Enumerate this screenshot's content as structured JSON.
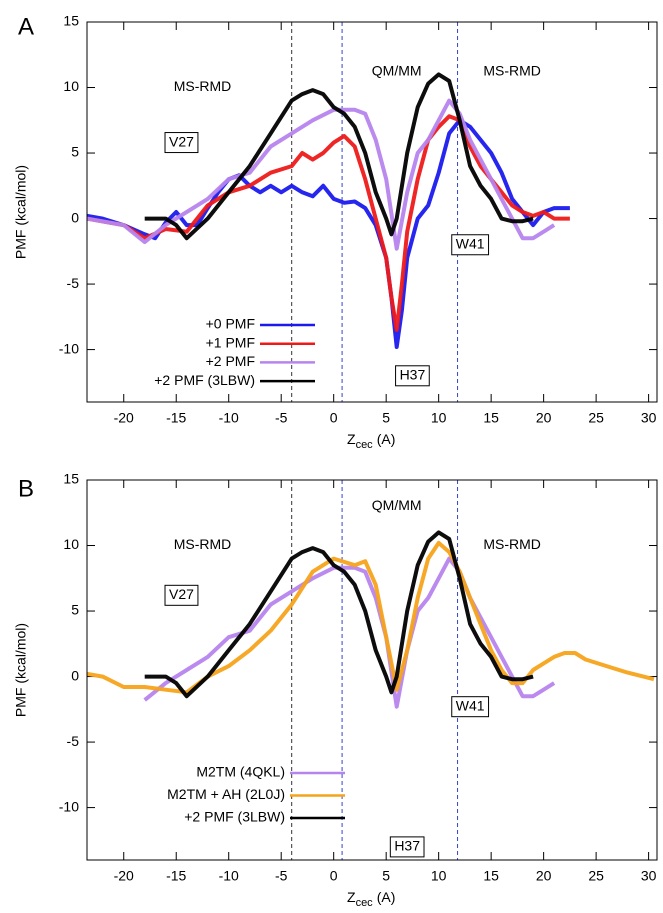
{
  "chart_data": [
    {
      "type": "line",
      "panel_label": "A",
      "ylabel": "PMF (kcal/mol)",
      "xlabel": "Z",
      "xlabel_sub": "cec",
      "xlabel_unit": "(A)",
      "xlim": [
        -23.5,
        30.8
      ],
      "ylim": [
        -14,
        15
      ],
      "xticks": [
        -20,
        -15,
        -10,
        -5,
        0,
        5,
        10,
        15,
        20,
        25,
        30
      ],
      "yticks": [
        -10,
        -5,
        0,
        5,
        10,
        15
      ],
      "vlines": [
        {
          "value": -4,
          "color": "#333333"
        },
        {
          "value": 0.8,
          "color": "#3344cc"
        },
        {
          "value": 11.8,
          "color": "#3344cc"
        }
      ],
      "annotations": [
        {
          "text": "MS-RMD"
        },
        {
          "text": "QM/MM"
        },
        {
          "text": "MS-RMD"
        },
        {
          "text": "V27",
          "boxed": true
        },
        {
          "text": "W41",
          "boxed": true
        },
        {
          "text": "H37",
          "boxed": true
        }
      ],
      "legend": "lower left",
      "series": [
        {
          "name": "+0 PMF",
          "color": "#1a1aee",
          "x": [
            -23.5,
            -22,
            -20,
            -18,
            -17,
            -16,
            -15,
            -14,
            -13,
            -12,
            -11,
            -10,
            -9,
            -8,
            -7,
            -6,
            -5,
            -4,
            -3,
            -2,
            -1,
            0,
            1,
            2,
            3,
            4,
            5,
            5.5,
            6,
            6.5,
            7,
            8,
            9,
            10,
            11,
            12,
            13,
            14,
            15,
            16,
            17,
            18,
            19,
            20,
            21,
            22.5
          ],
          "values": [
            0.2,
            0,
            -0.5,
            -1.2,
            -1.5,
            -0.3,
            0.5,
            -0.5,
            -0.5,
            0.8,
            2,
            3,
            3.3,
            2.5,
            2,
            2.5,
            2,
            2.5,
            2,
            1.7,
            2.5,
            1.5,
            1.2,
            1.3,
            0.8,
            -0.5,
            -3,
            -6,
            -9.8,
            -7,
            -3,
            0,
            1,
            3.5,
            6.5,
            7.5,
            7,
            6,
            5,
            3.5,
            1.5,
            0.5,
            -0.5,
            0.5,
            0.8,
            0.8
          ]
        },
        {
          "name": "+1 PMF",
          "color": "#ee1a1a",
          "x": [
            -23.5,
            -20,
            -18,
            -16,
            -14,
            -12,
            -10,
            -8,
            -6,
            -4,
            -3,
            -2,
            -1,
            0,
            1,
            2,
            3,
            4,
            5,
            5.5,
            6,
            6.5,
            7,
            8,
            9,
            10,
            11,
            12,
            13,
            14,
            15,
            16,
            17,
            18,
            19,
            20,
            21,
            22.5
          ],
          "values": [
            0,
            -0.5,
            -1.5,
            -0.8,
            -1,
            1,
            2,
            2.5,
            3.5,
            4,
            5,
            4.5,
            5,
            5.8,
            6.3,
            5.5,
            3,
            0,
            -3,
            -6,
            -8.5,
            -5,
            -1,
            3,
            6,
            7,
            7.8,
            7.5,
            5.5,
            4,
            3,
            2,
            1,
            0.5,
            0.2,
            0.5,
            0,
            0
          ]
        },
        {
          "name": "+2 PMF",
          "color": "#b784ee",
          "x": [
            -23.5,
            -20,
            -18,
            -16,
            -14,
            -12,
            -10,
            -8,
            -6,
            -4,
            -2,
            0,
            2,
            3,
            4,
            5,
            6,
            7,
            8,
            9,
            10,
            11,
            12,
            13,
            14,
            15,
            16,
            17,
            18,
            19,
            20,
            21
          ],
          "values": [
            0,
            -0.5,
            -1.8,
            -0.5,
            0.5,
            1.5,
            3,
            3.5,
            5.5,
            6.5,
            7.5,
            8.3,
            8.3,
            8,
            6,
            3,
            -2.3,
            2,
            5,
            6,
            7.5,
            9,
            8,
            6,
            4.5,
            3,
            1.5,
            0,
            -1.5,
            -1.5,
            -1,
            -0.5
          ]
        },
        {
          "name": "+2 PMF (3LBW)",
          "color": "#000000",
          "x": [
            -18,
            -16,
            -15,
            -14,
            -12,
            -10,
            -8,
            -6,
            -4,
            -3,
            -2,
            -1,
            0,
            1,
            2,
            3,
            4,
            5,
            5.5,
            6,
            7,
            8,
            9,
            10,
            11,
            12,
            13,
            14,
            15,
            16,
            17,
            18,
            19
          ],
          "values": [
            0,
            0,
            -0.5,
            -1.5,
            0,
            2,
            4,
            6.5,
            9,
            9.5,
            9.8,
            9.5,
            8.5,
            8,
            7,
            5,
            2,
            0,
            -1.2,
            0,
            5,
            8.5,
            10.3,
            11,
            10.5,
            7.5,
            4,
            2.5,
            1.5,
            0,
            -0.2,
            -0.2,
            0
          ]
        }
      ]
    },
    {
      "type": "line",
      "panel_label": "B",
      "ylabel": "PMF (kcal/mol)",
      "xlabel": "Z",
      "xlabel_sub": "cec",
      "xlabel_unit": "(A)",
      "xlim": [
        -23.5,
        30.8
      ],
      "ylim": [
        -14,
        15
      ],
      "xticks": [
        -20,
        -15,
        -10,
        -5,
        0,
        5,
        10,
        15,
        20,
        25,
        30
      ],
      "yticks": [
        -10,
        -5,
        0,
        5,
        10,
        15
      ],
      "vlines": [
        {
          "value": -4,
          "color": "#333333"
        },
        {
          "value": 0.8,
          "color": "#3344cc"
        },
        {
          "value": 11.8,
          "color": "#3344cc"
        }
      ],
      "annotations": [
        {
          "text": "MS-RMD"
        },
        {
          "text": "QM/MM"
        },
        {
          "text": "MS-RMD"
        },
        {
          "text": "V27",
          "boxed": true
        },
        {
          "text": "W41",
          "boxed": true
        },
        {
          "text": "H37",
          "boxed": true
        }
      ],
      "legend": "lower left",
      "series": [
        {
          "name": "M2TM (4QKL)",
          "color": "#b784ee",
          "x": [
            -18,
            -16,
            -14,
            -12,
            -10,
            -8,
            -6,
            -4,
            -2,
            0,
            2,
            3,
            4,
            5,
            6,
            7,
            8,
            9,
            10,
            11,
            12,
            13,
            14,
            15,
            16,
            17,
            18,
            19,
            20,
            21
          ],
          "values": [
            -1.8,
            -0.5,
            0.5,
            1.5,
            3,
            3.5,
            5.5,
            6.5,
            7.5,
            8.3,
            8.3,
            8,
            6,
            3,
            -2.3,
            2,
            5,
            6,
            7.5,
            9,
            8,
            6,
            4.5,
            3,
            1.5,
            0,
            -1.5,
            -1.5,
            -1,
            -0.5
          ]
        },
        {
          "name": "M2TM + AH (2L0J)",
          "color": "#f5a31a",
          "x": [
            -23.5,
            -22,
            -20,
            -18,
            -16,
            -14,
            -12,
            -10,
            -8,
            -6,
            -4,
            -2,
            0,
            2,
            3,
            4,
            5,
            6,
            7,
            8,
            9,
            10,
            11,
            12,
            13,
            14,
            15,
            16,
            17,
            18,
            19,
            20,
            21,
            22,
            23,
            24,
            26,
            28,
            30.5
          ],
          "values": [
            0.2,
            0,
            -0.8,
            -0.8,
            -1,
            -1.2,
            0,
            0.8,
            2,
            3.5,
            5.5,
            8,
            9,
            8.5,
            8.8,
            7,
            3,
            -1,
            2,
            6,
            9,
            10.2,
            9.5,
            8,
            6,
            4,
            2,
            0.5,
            -0.5,
            -0.5,
            0.5,
            1,
            1.5,
            1.8,
            1.8,
            1.3,
            0.8,
            0.3,
            -0.2
          ]
        },
        {
          "name": "+2 PMF (3LBW)",
          "color": "#000000",
          "x": [
            -18,
            -16,
            -15,
            -14,
            -12,
            -10,
            -8,
            -6,
            -4,
            -3,
            -2,
            -1,
            0,
            1,
            2,
            3,
            4,
            5,
            5.5,
            6,
            7,
            8,
            9,
            10,
            11,
            12,
            13,
            14,
            15,
            16,
            17,
            18,
            19
          ],
          "values": [
            0,
            0,
            -0.5,
            -1.5,
            0,
            2,
            4,
            6.5,
            9,
            9.5,
            9.8,
            9.5,
            8.5,
            8,
            7,
            5,
            2,
            0,
            -1.2,
            0,
            5,
            8.5,
            10.3,
            11,
            10.5,
            7.5,
            4,
            2.5,
            1.5,
            0,
            -0.2,
            -0.2,
            0
          ]
        }
      ]
    }
  ]
}
